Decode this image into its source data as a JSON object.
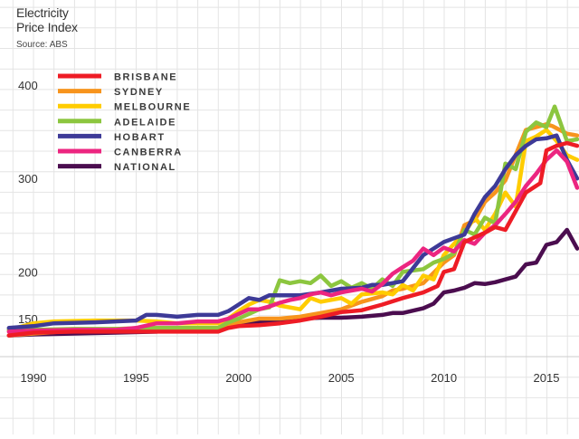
{
  "title_line1": "Electricity",
  "title_line2": "Price Index",
  "subtitle": "Source: ABS",
  "chart_data": {
    "type": "line",
    "title": "Electricity Price Index",
    "subtitle": "Source: ABS",
    "xlabel": "",
    "ylabel": "",
    "xlim": [
      1988.8,
      2016.5
    ],
    "ylim": [
      130,
      430
    ],
    "grid": true,
    "legend_position": "top-left",
    "y_ticks": [
      150,
      200,
      300,
      400
    ],
    "x_ticks": [
      1990,
      1995,
      2000,
      2005,
      2010,
      2015
    ],
    "series": [
      {
        "name": "BRISBANE",
        "color": "#ee1c25",
        "points": [
          [
            1988.8,
            132
          ],
          [
            1990,
            135
          ],
          [
            1992,
            136
          ],
          [
            1994,
            136
          ],
          [
            1996,
            136
          ],
          [
            1998,
            136
          ],
          [
            1999,
            136
          ],
          [
            1999.5,
            140
          ],
          [
            2000,
            142
          ],
          [
            2001,
            143
          ],
          [
            2002,
            145
          ],
          [
            2003,
            148
          ],
          [
            2004,
            152
          ],
          [
            2005,
            157
          ],
          [
            2006,
            159
          ],
          [
            2007,
            165
          ],
          [
            2008,
            172
          ],
          [
            2009,
            178
          ],
          [
            2009.7,
            185
          ],
          [
            2010,
            200
          ],
          [
            2010.5,
            203
          ],
          [
            2011,
            232
          ],
          [
            2012,
            242
          ],
          [
            2012.5,
            248
          ],
          [
            2013,
            245
          ],
          [
            2013.5,
            265
          ],
          [
            2014,
            285
          ],
          [
            2014.7,
            295
          ],
          [
            2015,
            330
          ],
          [
            2015.5,
            335
          ],
          [
            2016,
            338
          ],
          [
            2016.5,
            335
          ]
        ]
      },
      {
        "name": "SYDNEY",
        "color": "#f7941d",
        "points": [
          [
            1988.8,
            132
          ],
          [
            1990,
            134
          ],
          [
            1992,
            137
          ],
          [
            1994,
            139
          ],
          [
            1996,
            140
          ],
          [
            1998,
            140
          ],
          [
            1999,
            140
          ],
          [
            1999.5,
            142
          ],
          [
            2000,
            146
          ],
          [
            2001,
            150
          ],
          [
            2002,
            150
          ],
          [
            2003,
            152
          ],
          [
            2004,
            156
          ],
          [
            2005,
            160
          ],
          [
            2006,
            168
          ],
          [
            2007,
            174
          ],
          [
            2007.5,
            180
          ],
          [
            2008,
            182
          ],
          [
            2009,
            188
          ],
          [
            2010,
            210
          ],
          [
            2010.5,
            218
          ],
          [
            2011,
            250
          ],
          [
            2011.5,
            255
          ],
          [
            2012,
            275
          ],
          [
            2012.5,
            285
          ],
          [
            2013,
            298
          ],
          [
            2014,
            352
          ],
          [
            2014.5,
            355
          ],
          [
            2015,
            358
          ],
          [
            2015.3,
            356
          ],
          [
            2016,
            348
          ],
          [
            2016.5,
            346
          ]
        ]
      },
      {
        "name": "MELBOURNE",
        "color": "#ffcc00",
        "points": [
          [
            1988.8,
            138
          ],
          [
            1990,
            145
          ],
          [
            1991,
            147
          ],
          [
            1993,
            148
          ],
          [
            1995,
            148
          ],
          [
            1996,
            147
          ],
          [
            1997,
            145
          ],
          [
            1998,
            145
          ],
          [
            1999,
            145
          ],
          [
            1999.5,
            150
          ],
          [
            2000,
            158
          ],
          [
            2000.5,
            165
          ],
          [
            2001,
            170
          ],
          [
            2001.5,
            168
          ],
          [
            2002,
            164
          ],
          [
            2003,
            160
          ],
          [
            2003.5,
            172
          ],
          [
            2004,
            168
          ],
          [
            2005,
            172
          ],
          [
            2005.5,
            166
          ],
          [
            2006,
            176
          ],
          [
            2007,
            178
          ],
          [
            2007.5,
            176
          ],
          [
            2008,
            186
          ],
          [
            2008.5,
            180
          ],
          [
            2009,
            196
          ],
          [
            2009.5,
            192
          ],
          [
            2010,
            218
          ],
          [
            2010.5,
            230
          ],
          [
            2011,
            242
          ],
          [
            2011.5,
            258
          ],
          [
            2012,
            245
          ],
          [
            2012.5,
            262
          ],
          [
            2013,
            285
          ],
          [
            2013.5,
            270
          ],
          [
            2014,
            340
          ],
          [
            2014.5,
            345
          ],
          [
            2015,
            352
          ],
          [
            2015.5,
            340
          ],
          [
            2016,
            325
          ],
          [
            2016.5,
            320
          ]
        ]
      },
      {
        "name": "ADELAIDE",
        "color": "#8cc63f",
        "points": [
          [
            1988.8,
            138
          ],
          [
            1990,
            138
          ],
          [
            1992,
            139
          ],
          [
            1994,
            139
          ],
          [
            1996,
            140
          ],
          [
            1997,
            140
          ],
          [
            1998,
            140
          ],
          [
            1999,
            140
          ],
          [
            1999.5,
            146
          ],
          [
            2000,
            150
          ],
          [
            2001,
            160
          ],
          [
            2001.5,
            162
          ],
          [
            2002,
            191
          ],
          [
            2002.5,
            188
          ],
          [
            2003,
            190
          ],
          [
            2003.5,
            188
          ],
          [
            2004,
            196
          ],
          [
            2004.5,
            185
          ],
          [
            2005,
            190
          ],
          [
            2005.5,
            183
          ],
          [
            2006,
            188
          ],
          [
            2006.5,
            182
          ],
          [
            2007,
            192
          ],
          [
            2007.5,
            185
          ],
          [
            2008,
            200
          ],
          [
            2009,
            203
          ],
          [
            2009.5,
            210
          ],
          [
            2010,
            214
          ],
          [
            2010.5,
            220
          ],
          [
            2011,
            245
          ],
          [
            2011.5,
            240
          ],
          [
            2012,
            258
          ],
          [
            2012.5,
            252
          ],
          [
            2013,
            316
          ],
          [
            2013.5,
            310
          ],
          [
            2014,
            350
          ],
          [
            2014.5,
            360
          ],
          [
            2015,
            355
          ],
          [
            2015.4,
            377
          ],
          [
            2016,
            340
          ],
          [
            2016.5,
            342
          ]
        ]
      },
      {
        "name": "HOBART",
        "color": "#3d3a97",
        "points": [
          [
            1988.8,
            140
          ],
          [
            1990,
            142
          ],
          [
            1991,
            145
          ],
          [
            1993,
            146
          ],
          [
            1995,
            148
          ],
          [
            1995.5,
            154
          ],
          [
            1996,
            154
          ],
          [
            1997,
            152
          ],
          [
            1998,
            154
          ],
          [
            1999,
            154
          ],
          [
            1999.5,
            158
          ],
          [
            2000,
            165
          ],
          [
            2000.5,
            172
          ],
          [
            2001,
            170
          ],
          [
            2001.5,
            175
          ],
          [
            2002,
            175
          ],
          [
            2003,
            175
          ],
          [
            2004,
            178
          ],
          [
            2005,
            182
          ],
          [
            2006,
            183
          ],
          [
            2006.5,
            186
          ],
          [
            2007,
            186
          ],
          [
            2008,
            190
          ],
          [
            2009,
            218
          ],
          [
            2009.5,
            225
          ],
          [
            2010,
            232
          ],
          [
            2010.5,
            236
          ],
          [
            2011,
            240
          ],
          [
            2011.5,
            262
          ],
          [
            2012,
            280
          ],
          [
            2012.5,
            292
          ],
          [
            2013,
            310
          ],
          [
            2013.5,
            325
          ],
          [
            2014,
            335
          ],
          [
            2014.5,
            342
          ],
          [
            2015,
            343
          ],
          [
            2015.5,
            346
          ],
          [
            2016,
            320
          ],
          [
            2016.5,
            300
          ]
        ]
      },
      {
        "name": "CANBERRA",
        "color": "#ec2580",
        "points": [
          [
            1988.8,
            136
          ],
          [
            1990,
            137
          ],
          [
            1992,
            138
          ],
          [
            1994,
            138
          ],
          [
            1995,
            140
          ],
          [
            1996,
            145
          ],
          [
            1997,
            145
          ],
          [
            1998,
            147
          ],
          [
            1999,
            147
          ],
          [
            1999.5,
            150
          ],
          [
            2000,
            155
          ],
          [
            2000.5,
            160
          ],
          [
            2001,
            160
          ],
          [
            2001.5,
            163
          ],
          [
            2002,
            167
          ],
          [
            2002.5,
            170
          ],
          [
            2003,
            172
          ],
          [
            2003.5,
            176
          ],
          [
            2004,
            178
          ],
          [
            2004.5,
            175
          ],
          [
            2005,
            178
          ],
          [
            2005.5,
            180
          ],
          [
            2006,
            182
          ],
          [
            2006.5,
            179
          ],
          [
            2007,
            187
          ],
          [
            2007.5,
            198
          ],
          [
            2008,
            205
          ],
          [
            2008.5,
            212
          ],
          [
            2009,
            225
          ],
          [
            2009.5,
            218
          ],
          [
            2010,
            226
          ],
          [
            2010.5,
            222
          ],
          [
            2011,
            234
          ],
          [
            2011.5,
            230
          ],
          [
            2012,
            242
          ],
          [
            2012.5,
            250
          ],
          [
            2013,
            262
          ],
          [
            2013.5,
            275
          ],
          [
            2014,
            292
          ],
          [
            2014.5,
            305
          ],
          [
            2015,
            320
          ],
          [
            2015.5,
            330
          ],
          [
            2016,
            318
          ],
          [
            2016.5,
            290
          ]
        ]
      },
      {
        "name": "NATIONAL",
        "color": "#4b0d4f",
        "points": [
          [
            1988.8,
            132
          ],
          [
            1990,
            133
          ],
          [
            1992,
            134
          ],
          [
            1994,
            135
          ],
          [
            1996,
            136
          ],
          [
            1997,
            138
          ],
          [
            1998,
            139
          ],
          [
            1999,
            140
          ],
          [
            1999.5,
            143
          ],
          [
            2000,
            145
          ],
          [
            2001,
            146
          ],
          [
            2002,
            148
          ],
          [
            2003,
            150
          ],
          [
            2004,
            151
          ],
          [
            2005,
            151
          ],
          [
            2006,
            152
          ],
          [
            2007,
            154
          ],
          [
            2007.5,
            156
          ],
          [
            2008,
            156
          ],
          [
            2009,
            161
          ],
          [
            2009.5,
            166
          ],
          [
            2010,
            178
          ],
          [
            2010.5,
            180
          ],
          [
            2011,
            183
          ],
          [
            2011.5,
            188
          ],
          [
            2012,
            187
          ],
          [
            2012.5,
            189
          ],
          [
            2013,
            192
          ],
          [
            2013.5,
            195
          ],
          [
            2014,
            208
          ],
          [
            2014.5,
            210
          ],
          [
            2015,
            229
          ],
          [
            2015.5,
            232
          ],
          [
            2016,
            245
          ],
          [
            2016.5,
            225
          ]
        ]
      }
    ]
  }
}
